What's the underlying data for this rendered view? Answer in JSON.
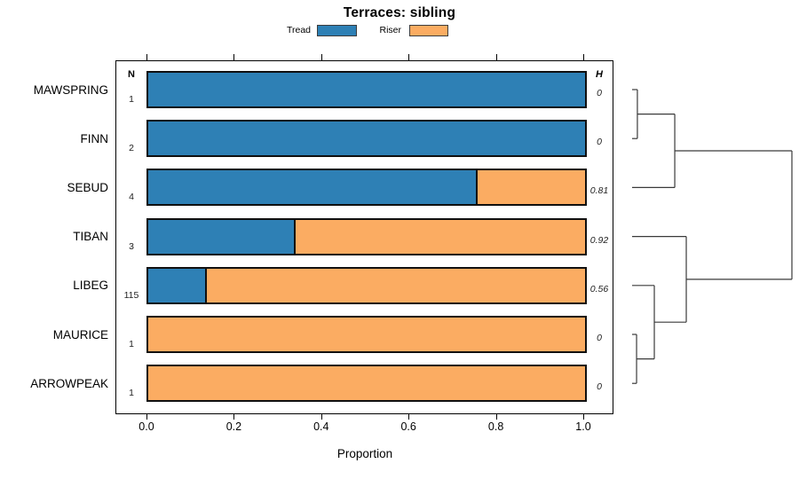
{
  "title": "Terraces: sibling",
  "legend": {
    "items": [
      {
        "label": "Tread",
        "color": "#2e80b5"
      },
      {
        "label": "Riser",
        "color": "#fbac62"
      }
    ]
  },
  "columns": {
    "n_header": "N",
    "h_header": "H"
  },
  "axis": {
    "label": "Proportion",
    "ticks": [
      "0.0",
      "0.2",
      "0.4",
      "0.6",
      "0.8",
      "1.0"
    ],
    "tick_values": [
      0,
      0.2,
      0.4,
      0.6,
      0.8,
      1.0
    ]
  },
  "chart_data": {
    "type": "bar",
    "orientation": "horizontal",
    "stacked": true,
    "title": "Terraces: sibling",
    "xlabel": "Proportion",
    "xlim": [
      0,
      1
    ],
    "grid": false,
    "legend_position": "top",
    "categories": [
      "MAWSPRING",
      "FINN",
      "SEBUD",
      "TIBAN",
      "LIBEG",
      "MAURICE",
      "ARROWPEAK"
    ],
    "n": [
      1,
      2,
      4,
      3,
      115,
      1,
      1
    ],
    "h": [
      "0",
      "0",
      "0.81",
      "0.92",
      "0.56",
      "0",
      "0"
    ],
    "series": [
      {
        "name": "Tread",
        "color": "#2e80b5",
        "values": [
          1,
          1,
          0.75,
          0.333,
          0.13,
          0,
          0
        ]
      },
      {
        "name": "Riser",
        "color": "#fbac62",
        "values": [
          0,
          0,
          0.25,
          0.667,
          0.87,
          1,
          1
        ]
      }
    ],
    "dendrogram": {
      "leaf_order": [
        "MAWSPRING",
        "FINN",
        "SEBUD",
        "TIBAN",
        "LIBEG",
        "MAURICE",
        "ARROWPEAK"
      ],
      "merges": [
        {
          "id": "m1",
          "children": [
            "l0",
            "l1"
          ],
          "height": 0.033
        },
        {
          "id": "m2",
          "children": [
            "m1",
            "l2"
          ],
          "height": 0.267
        },
        {
          "id": "m3",
          "children": [
            "l5",
            "l6"
          ],
          "height": 0.028
        },
        {
          "id": "m4",
          "children": [
            "l4",
            "m3"
          ],
          "height": 0.139
        },
        {
          "id": "m5",
          "children": [
            "l3",
            "m4"
          ],
          "height": 0.339
        },
        {
          "id": "m6",
          "children": [
            "m2",
            "m5"
          ],
          "height": 1.0
        }
      ]
    }
  }
}
